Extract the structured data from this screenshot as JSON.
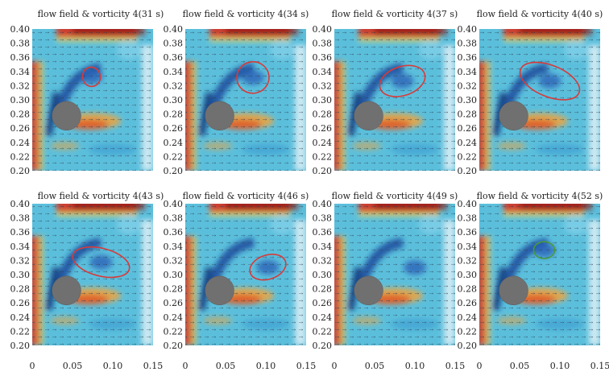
{
  "chart_data": {
    "type": "heatmap",
    "panels": [
      {
        "title": "flow field & vorticity 4(31 s)",
        "marker": {
          "color": "#d83a3a",
          "cx": 0.0735,
          "cy": 0.3325,
          "rx": 0.011,
          "ry": 0.016,
          "rot": -10
        }
      },
      {
        "title": "flow field & vorticity 4(34 s)",
        "marker": {
          "color": "#d83a3a",
          "cx": 0.084,
          "cy": 0.3315,
          "rx": 0.02,
          "ry": 0.026,
          "rot": -10
        }
      },
      {
        "title": "flow field & vorticity 4(37 s)",
        "marker": {
          "color": "#d83a3a",
          "cx": 0.0845,
          "cy": 0.3265,
          "rx": 0.029,
          "ry": 0.024,
          "rot": -18
        }
      },
      {
        "title": "flow field & vorticity 4(40 s)",
        "marker": {
          "color": "#d83a3a",
          "cx": 0.0875,
          "cy": 0.3265,
          "rx": 0.039,
          "ry": 0.026,
          "rot": 22
        }
      },
      {
        "title": "flow field & vorticity 4(43 s)",
        "marker": {
          "color": "#d83a3a",
          "cx": 0.0855,
          "cy": 0.3175,
          "rx": 0.036,
          "ry": 0.023,
          "rot": 14
        }
      },
      {
        "title": "flow field & vorticity 4(46 s)",
        "marker": {
          "color": "#d83a3a",
          "cx": 0.1025,
          "cy": 0.3105,
          "rx": 0.023,
          "ry": 0.02,
          "rot": -18
        }
      },
      {
        "title": "flow field & vorticity 4(49 s)",
        "marker": null
      },
      {
        "title": "flow field & vorticity 4(52 s)",
        "marker": {
          "color": "#4a9a3a",
          "cx": 0.0805,
          "cy": 0.3345,
          "rx": 0.013,
          "ry": 0.014,
          "rot": 0
        }
      }
    ],
    "xlim": [
      0,
      0.15
    ],
    "ylim": [
      0.2,
      0.4
    ],
    "xticks": [
      "0",
      "0.05",
      "0.10",
      "0.15"
    ],
    "yticks": [
      "0.20",
      "0.22",
      "0.24",
      "0.26",
      "0.28",
      "0.30",
      "0.32",
      "0.34",
      "0.36",
      "0.38",
      "0.40"
    ],
    "cylinder": {
      "cx": 0.0425,
      "cy": 0.2775,
      "r": 0.018,
      "color": "#707070"
    },
    "colormap": {
      "negative": "#1c4fa0",
      "zero": "#5bbfdc",
      "positive": "#d8301c"
    }
  }
}
